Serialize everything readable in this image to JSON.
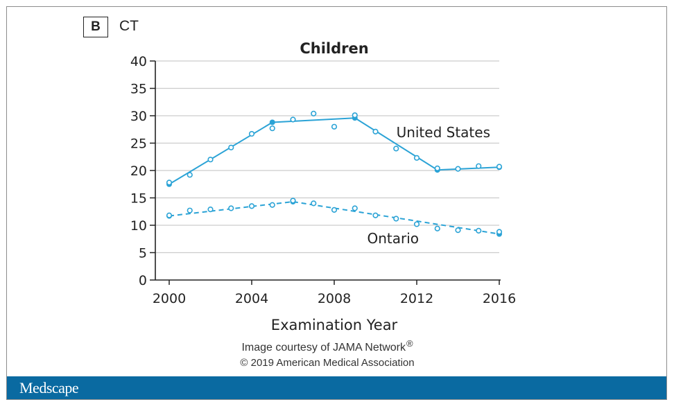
{
  "panel": {
    "badge": "B",
    "label": "CT"
  },
  "credit": {
    "text": "Image courtesy of JAMA Network",
    "mark": "®",
    "copyright": "© 2019 American Medical Association"
  },
  "footer": {
    "brand": "Medscape"
  },
  "colors": {
    "series": "#2ba3d6",
    "axis": "#222222",
    "grid": "#cccccc",
    "footer_bg": "#0a6aa1"
  },
  "chart_data": {
    "type": "line",
    "title": "Children",
    "xlabel": "Examination Year",
    "ylabel": "",
    "xlim": [
      2000,
      2016
    ],
    "ylim": [
      0,
      40
    ],
    "x_ticks": [
      2000,
      2004,
      2008,
      2012,
      2016
    ],
    "y_ticks": [
      0,
      5,
      10,
      15,
      20,
      25,
      30,
      35,
      40
    ],
    "grid": true,
    "series": [
      {
        "name": "United States",
        "line_style": "solid",
        "points": [
          {
            "x": 2000,
            "y": 17.8
          },
          {
            "x": 2001,
            "y": 19.2
          },
          {
            "x": 2002,
            "y": 22.0
          },
          {
            "x": 2003,
            "y": 24.2
          },
          {
            "x": 2004,
            "y": 26.7
          },
          {
            "x": 2005,
            "y": 27.7
          },
          {
            "x": 2006,
            "y": 29.3
          },
          {
            "x": 2007,
            "y": 30.4
          },
          {
            "x": 2008,
            "y": 28.0
          },
          {
            "x": 2009,
            "y": 30.1
          },
          {
            "x": 2010,
            "y": 27.1
          },
          {
            "x": 2011,
            "y": 24.0
          },
          {
            "x": 2012,
            "y": 22.3
          },
          {
            "x": 2013,
            "y": 20.4
          },
          {
            "x": 2014,
            "y": 20.3
          },
          {
            "x": 2015,
            "y": 20.8
          },
          {
            "x": 2016,
            "y": 20.7
          }
        ],
        "trend": [
          {
            "x": 2000,
            "y": 17.5
          },
          {
            "x": 2005,
            "y": 28.8
          },
          {
            "x": 2009,
            "y": 29.6
          },
          {
            "x": 2013,
            "y": 20.1
          },
          {
            "x": 2016,
            "y": 20.6
          }
        ]
      },
      {
        "name": "Ontario",
        "line_style": "dashed",
        "points": [
          {
            "x": 2000,
            "y": 11.8
          },
          {
            "x": 2001,
            "y": 12.7
          },
          {
            "x": 2002,
            "y": 12.9
          },
          {
            "x": 2003,
            "y": 13.1
          },
          {
            "x": 2004,
            "y": 13.5
          },
          {
            "x": 2005,
            "y": 13.7
          },
          {
            "x": 2006,
            "y": 14.5
          },
          {
            "x": 2007,
            "y": 14.0
          },
          {
            "x": 2008,
            "y": 12.8
          },
          {
            "x": 2009,
            "y": 13.1
          },
          {
            "x": 2010,
            "y": 11.8
          },
          {
            "x": 2011,
            "y": 11.2
          },
          {
            "x": 2012,
            "y": 10.2
          },
          {
            "x": 2013,
            "y": 9.4
          },
          {
            "x": 2014,
            "y": 9.1
          },
          {
            "x": 2015,
            "y": 9.0
          },
          {
            "x": 2016,
            "y": 8.8
          }
        ],
        "trend": [
          {
            "x": 2000,
            "y": 11.7
          },
          {
            "x": 2006,
            "y": 14.3
          },
          {
            "x": 2016,
            "y": 8.4
          }
        ]
      }
    ]
  }
}
